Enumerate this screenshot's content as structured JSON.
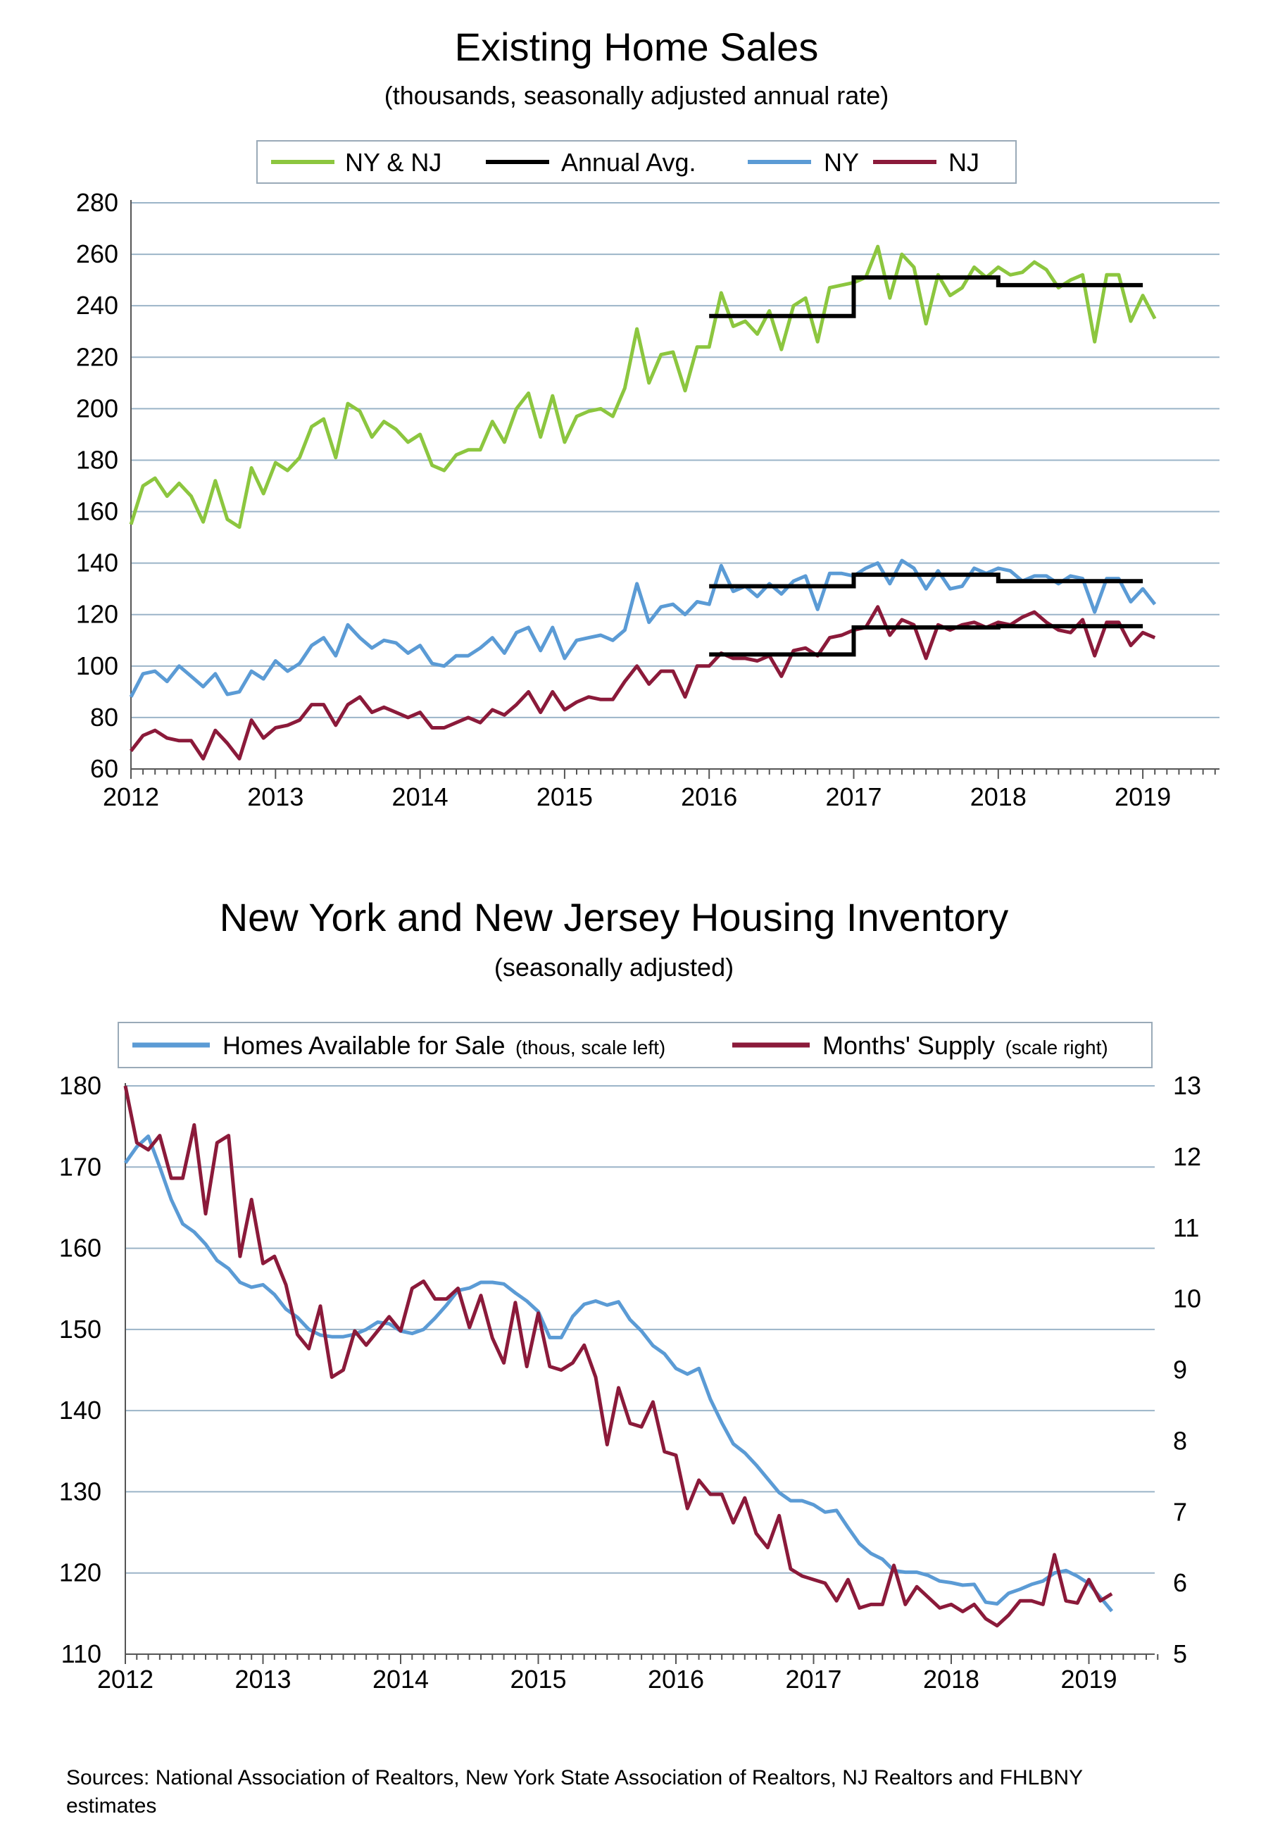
{
  "charts": [
    {
      "title": "Existing Home Sales",
      "subtitle": "(thousands, seasonally adjusted annual rate)",
      "legend": [
        "NY & NJ",
        "Annual Avg.",
        "NY",
        "NJ"
      ]
    },
    {
      "title": "New York and New Jersey Housing Inventory",
      "subtitle": "(seasonally adjusted)",
      "legend": [
        {
          "name": "Homes Available for Sale",
          "note": "(thous, scale left)"
        },
        {
          "name": "Months' Supply",
          "note": "(scale right)"
        }
      ]
    }
  ],
  "source_note": "Sources: National Association of Realtors, New York State Association of Realtors, NJ Realtors and FHLBNY estimates",
  "chart_data": [
    {
      "type": "line",
      "title": "Existing Home Sales",
      "subtitle": "(thousands, seasonally adjusted annual rate)",
      "x_start": "2012-01",
      "x_ticks": [
        "2012",
        "2013",
        "2014",
        "2015",
        "2016",
        "2017",
        "2018",
        "2019"
      ],
      "ylim": [
        60,
        280
      ],
      "y_ticks": [
        60,
        80,
        100,
        120,
        140,
        160,
        180,
        200,
        220,
        240,
        260,
        280
      ],
      "grid": true,
      "legend_position": "top",
      "series": [
        {
          "name": "NY & NJ",
          "color": "#8cc63f",
          "values": [
            155,
            170,
            173,
            166,
            171,
            166,
            156,
            172,
            157,
            154,
            177,
            167,
            179,
            176,
            181,
            193,
            196,
            181,
            202,
            199,
            189,
            195,
            192,
            187,
            190,
            178,
            176,
            182,
            184,
            184,
            195,
            187,
            200,
            206,
            189,
            205,
            187,
            197,
            199,
            200,
            197,
            208,
            231,
            210,
            221,
            222,
            207,
            224,
            224,
            245,
            232,
            234,
            229,
            238,
            223,
            240,
            243,
            226,
            247,
            248,
            249,
            251,
            263,
            243,
            260,
            255,
            233,
            252,
            244,
            247,
            255,
            251,
            255,
            252,
            253,
            257,
            254,
            247,
            250,
            252,
            226,
            252,
            252,
            234,
            244,
            235
          ]
        },
        {
          "name": "NY",
          "color": "#5b9bd5",
          "values": [
            88,
            97,
            98,
            94,
            100,
            96,
            92,
            97,
            89,
            90,
            98,
            95,
            102,
            98,
            101,
            108,
            111,
            104,
            116,
            111,
            107,
            110,
            109,
            105,
            108,
            101,
            100,
            104,
            104,
            107,
            111,
            105,
            113,
            115,
            106,
            115,
            103,
            110,
            111,
            112,
            110,
            114,
            132,
            117,
            123,
            124,
            120,
            125,
            124,
            139,
            129,
            131,
            127,
            132,
            128,
            133,
            135,
            122,
            136,
            136,
            135,
            138,
            140,
            132,
            141,
            138,
            130,
            137,
            130,
            131,
            138,
            136,
            138,
            137,
            133,
            135,
            135,
            132,
            135,
            134,
            121,
            134,
            134,
            125,
            130,
            124
          ]
        },
        {
          "name": "NJ",
          "color": "#8b1a3a",
          "values": [
            67,
            73,
            75,
            72,
            71,
            71,
            64,
            75,
            70,
            64,
            79,
            72,
            76,
            77,
            79,
            85,
            85,
            77,
            85,
            88,
            82,
            84,
            82,
            80,
            82,
            76,
            76,
            78,
            80,
            78,
            83,
            81,
            85,
            90,
            82,
            90,
            83,
            86,
            88,
            87,
            87,
            94,
            100,
            93,
            98,
            98,
            88,
            100,
            100,
            105,
            103,
            103,
            102,
            104,
            96,
            106,
            107,
            104,
            111,
            112,
            114,
            115,
            123,
            112,
            118,
            116,
            103,
            116,
            114,
            116,
            117,
            115,
            117,
            116,
            119,
            121,
            117,
            114,
            113,
            118,
            104,
            117,
            117,
            108,
            113,
            111
          ]
        },
        {
          "name": "Annual Avg.",
          "color": "#000000",
          "steps": [
            [
              2016,
              2017,
              131,
              104.5
            ],
            [
              2017,
              2018,
              135.5,
              115
            ],
            [
              2018,
              2019,
              133,
              115.5
            ]
          ],
          "nynj": [
            [
              2016,
              2017,
              236
            ],
            [
              2017,
              2018,
              251
            ],
            [
              2018,
              2019,
              248
            ]
          ]
        }
      ]
    },
    {
      "type": "line",
      "title": "New York and New Jersey Housing Inventory",
      "subtitle": "(seasonally adjusted)",
      "x_start": "2012-01",
      "x_ticks": [
        "2012",
        "2013",
        "2014",
        "2015",
        "2016",
        "2017",
        "2018",
        "2019"
      ],
      "ylim": [
        110,
        180
      ],
      "y_ticks": [
        110,
        120,
        130,
        140,
        150,
        160,
        170,
        180
      ],
      "y2lim": [
        5,
        13
      ],
      "y2_ticks": [
        5,
        6,
        7,
        8,
        9,
        10,
        11,
        12,
        13
      ],
      "grid": true,
      "legend_position": "top",
      "series": [
        {
          "name": "Homes Available for Sale",
          "axis": "left",
          "color": "#5b9bd5",
          "values": [
            170.5,
            172.5,
            173.8,
            170,
            166,
            163,
            162,
            160.5,
            158.5,
            157.5,
            155.8,
            155.2,
            155.5,
            154.3,
            152.5,
            151.5,
            150,
            149.3,
            149.1,
            149.1,
            149.4,
            150,
            150.9,
            150.7,
            149.8,
            149.5,
            150,
            151.4,
            153,
            154.8,
            155.1,
            155.8,
            155.8,
            155.6,
            154.5,
            153.5,
            152.2,
            149,
            149,
            151.6,
            153.1,
            153.5,
            153,
            153.4,
            151.2,
            149.8,
            148,
            147,
            145.2,
            144.5,
            145.2,
            141.4,
            138.5,
            135.9,
            134.8,
            133.3,
            131.6,
            129.9,
            128.9,
            128.9,
            128.4,
            127.5,
            127.7,
            125.6,
            123.6,
            122.4,
            121.7,
            120.3,
            120.1,
            120.1,
            119.7,
            119,
            118.8,
            118.5,
            118.6,
            116.4,
            116.2,
            117.5,
            118,
            118.6,
            119,
            120,
            120.3,
            119.6,
            118.7,
            117,
            115.3
          ]
        },
        {
          "name": "Months' Supply",
          "axis": "right",
          "color": "#8b1a3a",
          "values": [
            13,
            12.2,
            12.1,
            12.3,
            11.7,
            11.7,
            12.45,
            11.2,
            12.2,
            12.3,
            10.6,
            11.4,
            10.5,
            10.6,
            10.2,
            9.5,
            9.3,
            9.9,
            8.9,
            9,
            9.55,
            9.35,
            9.55,
            9.75,
            9.55,
            10.15,
            10.25,
            10,
            10,
            10.15,
            9.6,
            10.05,
            9.45,
            9.1,
            9.95,
            9.05,
            9.8,
            9.05,
            9,
            9.1,
            9.35,
            8.9,
            7.95,
            8.75,
            8.25,
            8.2,
            8.55,
            7.85,
            7.8,
            7.05,
            7.45,
            7.25,
            7.25,
            6.85,
            7.2,
            6.7,
            6.5,
            6.95,
            6.2,
            6.1,
            6.05,
            6,
            5.75,
            6.05,
            5.65,
            5.7,
            5.7,
            6.25,
            5.7,
            5.95,
            5.8,
            5.65,
            5.7,
            5.6,
            5.7,
            5.5,
            5.4,
            5.55,
            5.75,
            5.75,
            5.7,
            6.4,
            5.75,
            5.72,
            6.05,
            5.75,
            5.85
          ]
        }
      ]
    }
  ]
}
